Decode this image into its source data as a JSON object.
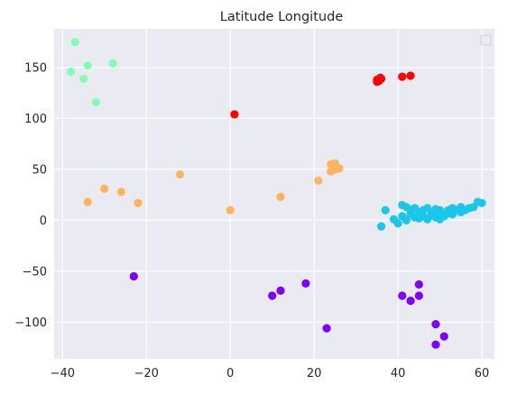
{
  "chart_data": {
    "type": "scatter",
    "title": "Latitude Longitude",
    "xlabel": "",
    "ylabel": "",
    "xlim": [
      -42,
      63
    ],
    "ylim": [
      -136,
      188
    ],
    "xticks": [
      -40,
      -20,
      0,
      20,
      40,
      60
    ],
    "yticks": [
      -100,
      -50,
      0,
      50,
      100,
      150
    ],
    "xtick_labels": [
      "−40",
      "−20",
      "0",
      "20",
      "40",
      "60"
    ],
    "ytick_labels": [
      "−100",
      "−50",
      "0",
      "50",
      "100",
      "150"
    ],
    "grid": true,
    "legend": "upper-right (empty)",
    "background": "#eaeaf2",
    "series": [
      {
        "color": "#80ffb4",
        "points": [
          [
            -37,
            175
          ],
          [
            -38,
            146
          ],
          [
            -34,
            152
          ],
          [
            -35,
            139
          ],
          [
            -28,
            154
          ],
          [
            -32,
            116
          ]
        ]
      },
      {
        "color": "#ff0000",
        "points": [
          [
            1,
            104
          ],
          [
            35,
            136
          ],
          [
            35.5,
            137
          ],
          [
            36,
            139
          ],
          [
            35,
            138
          ],
          [
            41,
            141
          ],
          [
            43,
            142
          ],
          [
            35.8,
            140
          ]
        ]
      },
      {
        "color": "#ffb360",
        "points": [
          [
            -34,
            18
          ],
          [
            -30,
            31
          ],
          [
            -26,
            28
          ],
          [
            -22,
            17
          ],
          [
            -12,
            45
          ],
          [
            0,
            10
          ],
          [
            12,
            23
          ],
          [
            21,
            39
          ],
          [
            24,
            48
          ],
          [
            24,
            55
          ],
          [
            25,
            56
          ],
          [
            26,
            51
          ],
          [
            25,
            50
          ]
        ]
      },
      {
        "color": "#1ac7e8",
        "points": [
          [
            36,
            -6
          ],
          [
            37,
            10
          ],
          [
            39,
            1
          ],
          [
            40,
            -3
          ],
          [
            41,
            15
          ],
          [
            42,
            13
          ],
          [
            43,
            10
          ],
          [
            44,
            12
          ],
          [
            45,
            8
          ],
          [
            46,
            10
          ],
          [
            47,
            12
          ],
          [
            48,
            8
          ],
          [
            49,
            11
          ],
          [
            50,
            10
          ],
          [
            51,
            6
          ],
          [
            52,
            7
          ],
          [
            53,
            12
          ],
          [
            55,
            13
          ],
          [
            56,
            10
          ],
          [
            57,
            12
          ],
          [
            59,
            18
          ],
          [
            60,
            17
          ],
          [
            44,
            3
          ],
          [
            46,
            4
          ],
          [
            49,
            3
          ],
          [
            51,
            4
          ],
          [
            43,
            6
          ],
          [
            48,
            5
          ],
          [
            52,
            9
          ],
          [
            54,
            10
          ],
          [
            58,
            13
          ],
          [
            42,
            0
          ],
          [
            45,
            2
          ],
          [
            47,
            1
          ],
          [
            50,
            2
          ],
          [
            53,
            6
          ],
          [
            55,
            8
          ],
          [
            41,
            4
          ],
          [
            50,
            1
          ],
          [
            52,
            10
          ]
        ]
      },
      {
        "color": "#8000ff",
        "points": [
          [
            -23,
            -55
          ],
          [
            10,
            -74
          ],
          [
            12,
            -69
          ],
          [
            18,
            -62
          ],
          [
            23,
            -106
          ],
          [
            41,
            -74
          ],
          [
            43,
            -79
          ],
          [
            45,
            -63
          ],
          [
            45,
            -74
          ],
          [
            49,
            -102
          ],
          [
            49,
            -122
          ],
          [
            51,
            -114
          ]
        ]
      }
    ]
  }
}
